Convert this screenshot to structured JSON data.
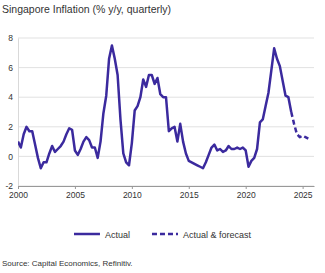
{
  "chart_data": {
    "type": "line",
    "title": "Singapore Inflation (% y/y, quarterly)",
    "source": "Source: Capital Economics, Refinitiv.",
    "x": [
      2000,
      2000.25,
      2000.5,
      2000.75,
      2001,
      2001.25,
      2001.5,
      2001.75,
      2002,
      2002.25,
      2002.5,
      2002.75,
      2003,
      2003.25,
      2003.5,
      2003.75,
      2004,
      2004.25,
      2004.5,
      2004.75,
      2005,
      2005.25,
      2005.5,
      2005.75,
      2006,
      2006.25,
      2006.5,
      2006.75,
      2007,
      2007.25,
      2007.5,
      2007.75,
      2008,
      2008.25,
      2008.5,
      2008.75,
      2009,
      2009.25,
      2009.5,
      2009.75,
      2010,
      2010.25,
      2010.5,
      2010.75,
      2011,
      2011.25,
      2011.5,
      2011.75,
      2012,
      2012.25,
      2012.5,
      2012.75,
      2013,
      2013.25,
      2013.5,
      2013.75,
      2014,
      2014.25,
      2014.5,
      2014.75,
      2015,
      2015.25,
      2015.5,
      2015.75,
      2016,
      2016.25,
      2016.5,
      2016.75,
      2017,
      2017.25,
      2017.5,
      2017.75,
      2018,
      2018.25,
      2018.5,
      2018.75,
      2019,
      2019.25,
      2019.5,
      2019.75,
      2020,
      2020.25,
      2020.5,
      2020.75,
      2021,
      2021.25,
      2021.5,
      2021.75,
      2022,
      2022.25,
      2022.5,
      2022.75,
      2023,
      2023.25,
      2023.5,
      2023.75,
      2024,
      2024.25,
      2024.5,
      2024.75,
      2025,
      2025.25,
      2025.5
    ],
    "series": [
      {
        "name": "Actual",
        "color": "#3b2a9e",
        "line_style": "solid",
        "values": [
          1.0,
          0.6,
          1.5,
          2.0,
          1.7,
          1.7,
          0.8,
          -0.1,
          -0.8,
          -0.4,
          -0.4,
          0.2,
          0.7,
          0.3,
          0.5,
          0.7,
          1.0,
          1.5,
          1.9,
          1.8,
          0.4,
          0.1,
          0.5,
          1.0,
          1.3,
          1.1,
          0.6,
          0.6,
          -0.1,
          1.0,
          2.9,
          4.1,
          6.6,
          7.5,
          6.6,
          5.5,
          2.5,
          0.2,
          -0.4,
          -0.6,
          0.9,
          3.1,
          3.4,
          4.0,
          5.2,
          4.7,
          5.5,
          5.5,
          4.9,
          5.3,
          4.2,
          4.0,
          4.0,
          1.7,
          1.9,
          2.0,
          1.0,
          2.2,
          1.0,
          0.2,
          -0.3,
          -0.4,
          -0.5,
          -0.6,
          -0.7,
          -0.8,
          -0.4,
          0.1,
          0.6,
          0.8,
          0.4,
          0.5,
          0.3,
          0.4,
          0.7,
          0.5,
          0.5,
          0.6,
          0.5,
          0.6,
          0.4,
          -0.7,
          -0.3,
          -0.1,
          0.5,
          2.3,
          2.5,
          3.4,
          4.3,
          5.8,
          7.3,
          6.6,
          6.1,
          5.1,
          4.1,
          4.0,
          3.0,
          null,
          null,
          null,
          null,
          null,
          null
        ]
      },
      {
        "name": "Actual & forecast",
        "color": "#3b2a9e",
        "line_style": "dashed",
        "values": [
          null,
          null,
          null,
          null,
          null,
          null,
          null,
          null,
          null,
          null,
          null,
          null,
          null,
          null,
          null,
          null,
          null,
          null,
          null,
          null,
          null,
          null,
          null,
          null,
          null,
          null,
          null,
          null,
          null,
          null,
          null,
          null,
          null,
          null,
          null,
          null,
          null,
          null,
          null,
          null,
          null,
          null,
          null,
          null,
          null,
          null,
          null,
          null,
          null,
          null,
          null,
          null,
          null,
          null,
          null,
          null,
          null,
          null,
          null,
          null,
          null,
          null,
          null,
          null,
          null,
          null,
          null,
          null,
          null,
          null,
          null,
          null,
          null,
          null,
          null,
          null,
          null,
          null,
          null,
          null,
          null,
          null,
          null,
          null,
          null,
          null,
          null,
          null,
          null,
          null,
          null,
          null,
          null,
          null,
          null,
          null,
          3.0,
          2.2,
          1.5,
          1.3,
          1.4,
          1.3,
          1.2
        ]
      }
    ],
    "xlim": [
      2000,
      2026
    ],
    "xticks": [
      2000,
      2005,
      2010,
      2015,
      2020,
      2025
    ],
    "ylim": [
      -2,
      8
    ],
    "yticks": [
      -2,
      0,
      2,
      4,
      6,
      8
    ],
    "grid": true,
    "legend": "bottom"
  }
}
